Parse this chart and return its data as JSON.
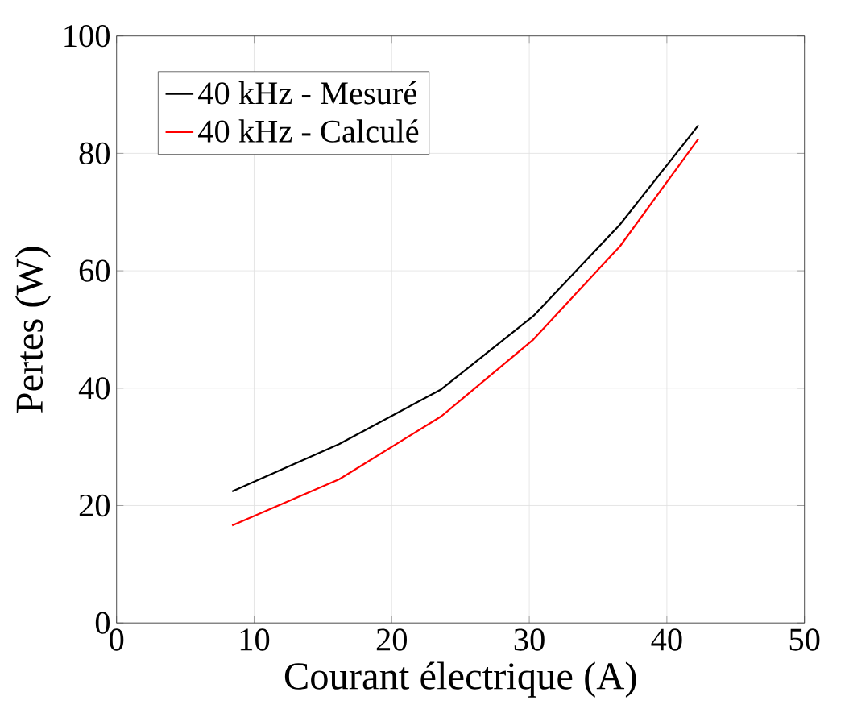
{
  "chart_data": {
    "type": "line",
    "xlabel": "Courant électrique (A)",
    "ylabel": "Pertes (W)",
    "xlim": [
      0,
      50
    ],
    "xticks": [
      0,
      10,
      20,
      30,
      40,
      50
    ],
    "ylim": [
      0,
      100
    ],
    "yticks": [
      0,
      20,
      40,
      60,
      80,
      100
    ],
    "grid": true,
    "legend": "top left",
    "line_style": "solid",
    "marker": "none",
    "series": [
      {
        "name": "40 kHz - Mesuré",
        "color": "#000000",
        "x": [
          8.4,
          16.2,
          23.6,
          30.3,
          36.6,
          42.3
        ],
        "values": [
          22.4,
          30.5,
          39.8,
          52.3,
          67.9,
          84.8
        ]
      },
      {
        "name": "40 kHz - Calculé",
        "color": "#ff0000",
        "x": [
          8.4,
          16.2,
          23.6,
          30.3,
          36.6,
          42.3
        ],
        "values": [
          16.6,
          24.5,
          35.2,
          48.3,
          64.2,
          82.5
        ]
      }
    ]
  }
}
